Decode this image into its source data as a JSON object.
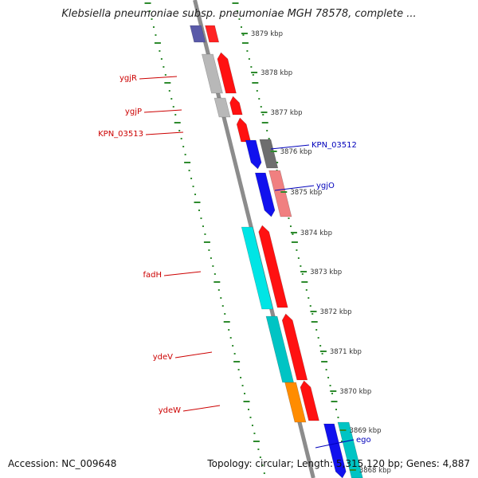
{
  "title": "Klebsiella pneumoniae subsp. pneumoniae MGH 78578, complete ...",
  "footer": {
    "accession": "Accession: NC_009648",
    "summary": "Topology: circular; Length: 5,315,120 bp; Genes: 4,887"
  },
  "colors": {
    "backbone": "#8c8c8c",
    "ruler": "#2e8b2e",
    "forward_label": "#cc0000",
    "reverse_label": "#0000bb"
  },
  "scale_labels": [
    {
      "id": "kbp-3879",
      "text": "3879 kbp"
    },
    {
      "id": "kbp-3878",
      "text": "3878 kbp"
    },
    {
      "id": "kbp-3877",
      "text": "3877 kbp"
    },
    {
      "id": "kbp-3876",
      "text": "3876 kbp"
    },
    {
      "id": "kbp-3875",
      "text": "3875 kbp"
    },
    {
      "id": "kbp-3874",
      "text": "3874 kbp"
    },
    {
      "id": "kbp-3873",
      "text": "3873 kbp"
    },
    {
      "id": "kbp-3872",
      "text": "3872 kbp"
    },
    {
      "id": "kbp-3871",
      "text": "3871 kbp"
    },
    {
      "id": "kbp-3870",
      "text": "3870 kbp"
    },
    {
      "id": "kbp-3869",
      "text": "3869 kbp"
    },
    {
      "id": "kbp-3868",
      "text": "3868 kbp"
    }
  ],
  "gene_labels": [
    {
      "id": "ygjR",
      "text": "ygjR",
      "strand": "forward"
    },
    {
      "id": "ygjP",
      "text": "ygjP",
      "strand": "forward"
    },
    {
      "id": "KPN_03513",
      "text": "KPN_03513",
      "strand": "forward"
    },
    {
      "id": "KPN_03512",
      "text": "KPN_03512",
      "strand": "reverse"
    },
    {
      "id": "ygjO",
      "text": "ygjO",
      "strand": "reverse"
    },
    {
      "id": "fadH",
      "text": "fadH",
      "strand": "forward"
    },
    {
      "id": "ydeV",
      "text": "ydeV",
      "strand": "forward"
    },
    {
      "id": "ydeW",
      "text": "ydeW",
      "strand": "forward"
    },
    {
      "id": "ego",
      "text": "ego",
      "strand": "reverse"
    }
  ],
  "features": [
    {
      "id": "f-top-cog",
      "track": "forward-cog",
      "color": "#5a5aa8"
    },
    {
      "id": "f-top-gene",
      "track": "forward-gene",
      "color": "#ff2222"
    },
    {
      "id": "f-ygjR-cog",
      "track": "forward-cog",
      "color": "#b8b8b8"
    },
    {
      "id": "f-ygjR-gene",
      "track": "forward-gene",
      "color": "#ff1111"
    },
    {
      "id": "f-ygjP-cog",
      "track": "forward-cog",
      "color": "#b8b8b8"
    },
    {
      "id": "f-ygjP-gene",
      "track": "forward-gene",
      "color": "#ff1111"
    },
    {
      "id": "f-kpn03513-gene",
      "track": "forward-gene",
      "color": "#ff1111"
    },
    {
      "id": "f-kpn03512-gene",
      "track": "reverse-gene",
      "color": "#1111ee"
    },
    {
      "id": "f-kpn03512-cog",
      "track": "reverse-cog",
      "color": "#6e6e6e"
    },
    {
      "id": "f-ygjO-gene",
      "track": "reverse-gene",
      "color": "#1111ee"
    },
    {
      "id": "f-ygjO-cog",
      "track": "reverse-cog",
      "color": "#f08080"
    },
    {
      "id": "f-fadH-cog",
      "track": "forward-cog",
      "color": "#00e5e5"
    },
    {
      "id": "f-fadH-gene",
      "track": "forward-gene",
      "color": "#ff1111"
    },
    {
      "id": "f-ydeV-cog",
      "track": "forward-cog",
      "color": "#00c4c4"
    },
    {
      "id": "f-ydeV-gene",
      "track": "forward-gene",
      "color": "#ff1111"
    },
    {
      "id": "f-ydeW-cog",
      "track": "forward-cog",
      "color": "#ff8c00"
    },
    {
      "id": "f-ydeW-gene",
      "track": "forward-gene",
      "color": "#ff1111"
    },
    {
      "id": "f-ego-gene",
      "track": "reverse-gene",
      "color": "#1111ee"
    },
    {
      "id": "f-ego-cog",
      "track": "reverse-cog",
      "color": "#00c4c4"
    }
  ]
}
